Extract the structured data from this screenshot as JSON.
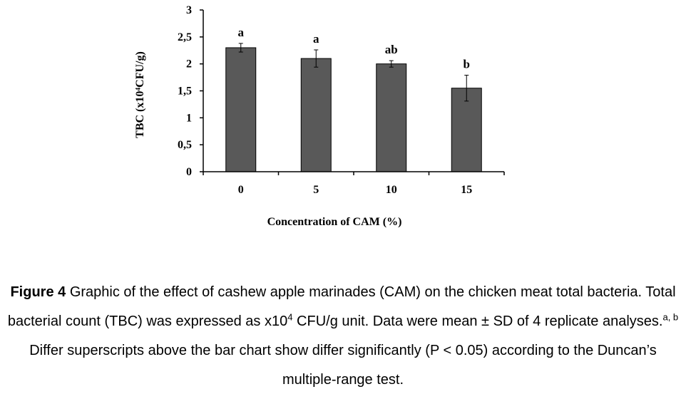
{
  "chart_data": {
    "type": "bar",
    "categories": [
      "0",
      "5",
      "10",
      "15"
    ],
    "values": [
      2.3,
      2.1,
      2.0,
      1.55
    ],
    "errors": [
      0.08,
      0.16,
      0.06,
      0.24
    ],
    "significance": [
      "a",
      "a",
      "ab",
      "b"
    ],
    "xlabel": "Concentration of CAM (%)",
    "ylabel": "TBC (x10⁴CFU/g)",
    "ylim": [
      0,
      3
    ],
    "yticks": [
      "0",
      "0,5",
      "1",
      "1,5",
      "2",
      "2,5",
      "3"
    ],
    "grid": false,
    "bar_color": "#595959"
  },
  "caption": {
    "figure_label": "Figure 4",
    "part1": " Graphic of the effect of cashew apple marinades (CAM) on the chicken meat total bacteria. Total bacterial count (TBC) was expressed as x10",
    "sup1": "4",
    "part2": " CFU/g unit. Data were mean ± SD of 4 replicate analyses.",
    "sup2": "a, b",
    "part3": " Differ superscripts above the bar chart show differ significantly (P < 0.05) according to the Duncan’s multiple-range test."
  }
}
